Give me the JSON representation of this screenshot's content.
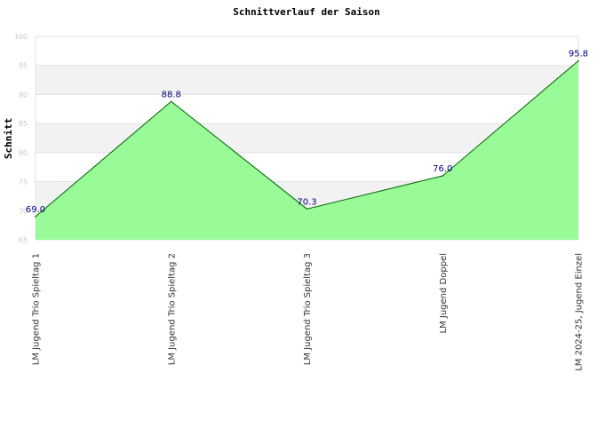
{
  "chart_data": {
    "type": "area",
    "title": "Schnittverlauf der Saison",
    "xlabel": "",
    "ylabel": "Schnitt",
    "ylim": [
      65,
      100
    ],
    "yticks": [
      65,
      70,
      75,
      80,
      85,
      90,
      95,
      100
    ],
    "categories": [
      "LM Jugend Trio Spieltag 1",
      "LM Jugend Trio Spieltag 2",
      "LM Jugend Trio Spieltag 3",
      "LM Jugend Doppel",
      "LM 2024-25, Jugend Einzel"
    ],
    "values": [
      69.0,
      88.8,
      70.3,
      76.0,
      95.8
    ],
    "data_labels": [
      "69.0",
      "88.8",
      "70.3",
      "76.0",
      "95.8"
    ],
    "grid": true,
    "legend": "none",
    "colors": {
      "fill": "#98fb98",
      "line": "#006400",
      "label": "#000080",
      "band": "#f2f2f2",
      "grid": "#e0e0e0"
    }
  }
}
